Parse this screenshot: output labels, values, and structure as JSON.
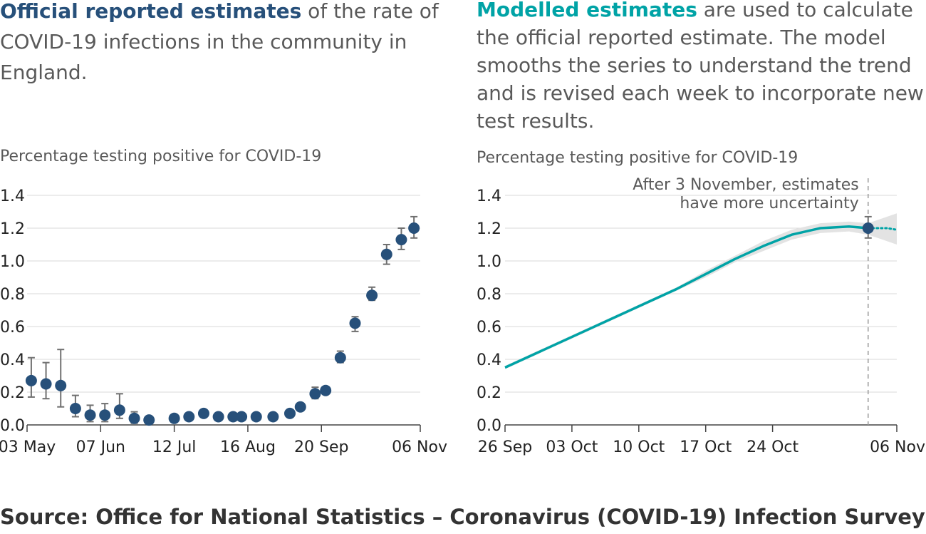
{
  "left_panel": {
    "headline_bold": "Official reported estimates",
    "headline_rest": " of the rate of COVID-19 infections in the community in England.",
    "ylabel": "Percentage testing positive for COVID-19"
  },
  "right_panel": {
    "headline_bold": "Modelled estimates",
    "headline_rest": " are used to calculate the official reported estimate. The model smooths the series to understand the trend and is revised each week to incorporate new test results.",
    "ylabel": "Percentage testing positive for COVID-19",
    "annotation_line1": "After 3 November, estimates",
    "annotation_line2": "have more uncertainty"
  },
  "source": "Source: Office for National Statistics – Coronavirus (COVID-19) Infection Survey",
  "colors": {
    "point": "#27507a",
    "line": "#00a3a6",
    "band": "#e3e3e3",
    "errorbar": "#707070",
    "grid": "#d9d9d9"
  },
  "chart_data": [
    {
      "type": "scatter",
      "ylabel": "Percentage testing positive for COVID-19",
      "ylim": [
        0,
        1.4
      ],
      "yticks": [
        "0.0",
        "0.2",
        "0.4",
        "0.6",
        "0.8",
        "1.0",
        "1.2",
        "1.4"
      ],
      "xlim": [
        "2020-05-03",
        "2020-11-06"
      ],
      "xticks": [
        {
          "date": "2020-05-03",
          "label": "03 May"
        },
        {
          "date": "2020-06-07",
          "label": "07 Jun"
        },
        {
          "date": "2020-07-12",
          "label": "12 Jul"
        },
        {
          "date": "2020-08-16",
          "label": "16 Aug"
        },
        {
          "date": "2020-09-20",
          "label": "20 Sep"
        },
        {
          "date": "2020-11-06",
          "label": "06 Nov"
        }
      ],
      "grid": true,
      "points": [
        {
          "x": "2020-05-05",
          "y": 0.27,
          "low": 0.17,
          "high": 0.41
        },
        {
          "x": "2020-05-12",
          "y": 0.25,
          "low": 0.16,
          "high": 0.38
        },
        {
          "x": "2020-05-19",
          "y": 0.24,
          "low": 0.11,
          "high": 0.46
        },
        {
          "x": "2020-05-26",
          "y": 0.1,
          "low": 0.05,
          "high": 0.18
        },
        {
          "x": "2020-06-02",
          "y": 0.06,
          "low": 0.02,
          "high": 0.12
        },
        {
          "x": "2020-06-09",
          "y": 0.06,
          "low": 0.02,
          "high": 0.13
        },
        {
          "x": "2020-06-16",
          "y": 0.09,
          "low": 0.04,
          "high": 0.19
        },
        {
          "x": "2020-06-23",
          "y": 0.04,
          "low": 0.01,
          "high": 0.08
        },
        {
          "x": "2020-06-30",
          "y": 0.03
        },
        {
          "x": "2020-07-12",
          "y": 0.04
        },
        {
          "x": "2020-07-19",
          "y": 0.05
        },
        {
          "x": "2020-07-26",
          "y": 0.07
        },
        {
          "x": "2020-08-02",
          "y": 0.05
        },
        {
          "x": "2020-08-09",
          "y": 0.05
        },
        {
          "x": "2020-08-13",
          "y": 0.05
        },
        {
          "x": "2020-08-20",
          "y": 0.05
        },
        {
          "x": "2020-08-28",
          "y": 0.05
        },
        {
          "x": "2020-09-05",
          "y": 0.07
        },
        {
          "x": "2020-09-10",
          "y": 0.11
        },
        {
          "x": "2020-09-17",
          "y": 0.19,
          "low": 0.16,
          "high": 0.23
        },
        {
          "x": "2020-09-22",
          "y": 0.21,
          "low": 0.19,
          "high": 0.23
        },
        {
          "x": "2020-09-29",
          "y": 0.41,
          "low": 0.38,
          "high": 0.45
        },
        {
          "x": "2020-10-06",
          "y": 0.62,
          "low": 0.57,
          "high": 0.66
        },
        {
          "x": "2020-10-14",
          "y": 0.79,
          "low": 0.76,
          "high": 0.84
        },
        {
          "x": "2020-10-21",
          "y": 1.04,
          "low": 0.98,
          "high": 1.1
        },
        {
          "x": "2020-10-28",
          "y": 1.13,
          "low": 1.07,
          "high": 1.2
        },
        {
          "x": "2020-11-03",
          "y": 1.2,
          "low": 1.14,
          "high": 1.27
        }
      ]
    },
    {
      "type": "line",
      "ylabel": "Percentage testing positive for COVID-19",
      "ylim": [
        0,
        1.4
      ],
      "yticks": [
        "0.0",
        "0.2",
        "0.4",
        "0.6",
        "0.8",
        "1.0",
        "1.2",
        "1.4"
      ],
      "xlim": [
        "2020-09-26",
        "2020-11-06"
      ],
      "xticks": [
        {
          "date": "2020-09-26",
          "label": "26 Sep"
        },
        {
          "date": "2020-10-03",
          "label": "03 Oct"
        },
        {
          "date": "2020-10-10",
          "label": "10 Oct"
        },
        {
          "date": "2020-10-17",
          "label": "17 Oct"
        },
        {
          "date": "2020-10-24",
          "label": "24 Oct"
        },
        {
          "date": "2020-11-06",
          "label": "06 Nov"
        }
      ],
      "grid": true,
      "series": [
        {
          "x": [
            "2020-09-26",
            "2020-09-29",
            "2020-10-02",
            "2020-10-05",
            "2020-10-08",
            "2020-10-11",
            "2020-10-14",
            "2020-10-17",
            "2020-10-20",
            "2020-10-23",
            "2020-10-26",
            "2020-10-29",
            "2020-11-01",
            "2020-11-03",
            "2020-11-04",
            "2020-11-05",
            "2020-11-06"
          ],
          "y": [
            0.35,
            0.43,
            0.51,
            0.59,
            0.67,
            0.75,
            0.83,
            0.92,
            1.01,
            1.09,
            1.16,
            1.2,
            1.21,
            1.2,
            1.2,
            1.2,
            1.19
          ],
          "low": [
            0.34,
            0.42,
            0.5,
            0.58,
            0.66,
            0.74,
            0.82,
            0.9,
            0.99,
            1.06,
            1.13,
            1.17,
            1.18,
            1.16,
            1.14,
            1.12,
            1.1
          ],
          "high": [
            0.36,
            0.44,
            0.52,
            0.6,
            0.68,
            0.76,
            0.84,
            0.94,
            1.03,
            1.12,
            1.19,
            1.23,
            1.24,
            1.23,
            1.25,
            1.27,
            1.29
          ],
          "dotted_after": "2020-11-03"
        }
      ],
      "reference_line": "2020-11-03",
      "reference_point": {
        "x": "2020-11-03",
        "y": 1.2,
        "low": 1.14,
        "high": 1.27
      }
    }
  ]
}
